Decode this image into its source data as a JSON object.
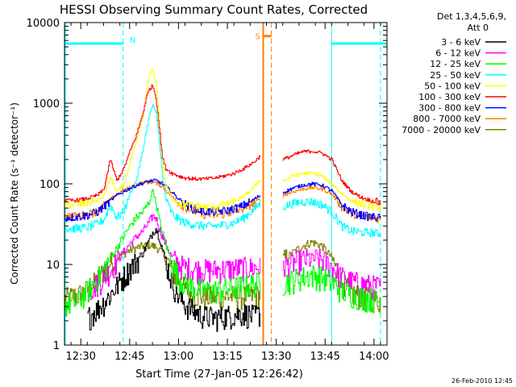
{
  "chart_data": {
    "type": "line",
    "title": "HESSI Observing Summary Count Rates, Corrected",
    "xlabel": "Start Time (27-Jan-05 12:26:42)",
    "ylabel": "Corrected Count Rate (s⁻¹ detector⁻¹)",
    "yscale": "log",
    "ylim": [
      1,
      10000
    ],
    "xlim_minutes": [
      -2,
      97
    ],
    "x_ticks": [
      {
        "label": "12:30",
        "minutes": 3
      },
      {
        "label": "12:45",
        "minutes": 18
      },
      {
        "label": "13:00",
        "minutes": 33
      },
      {
        "label": "13:15",
        "minutes": 48
      },
      {
        "label": "13:30",
        "minutes": 63
      },
      {
        "label": "13:45",
        "minutes": 78
      },
      {
        "label": "14:00",
        "minutes": 93
      }
    ],
    "y_ticks": [
      {
        "label": "1",
        "value": 1
      },
      {
        "label": "10",
        "value": 10
      },
      {
        "label": "100",
        "value": 100
      },
      {
        "label": "1000",
        "value": 1000
      },
      {
        "label": "10000",
        "value": 10000
      }
    ],
    "legend_title": [
      "Det 1,3,4,5,6,9,",
      "Att 0"
    ],
    "legend_position": "right",
    "timestamp": "26-Feb-2010 12:45",
    "annotations": {
      "night_label": "N",
      "saa_label": "S"
    },
    "markers": {
      "night_intervals": [
        [
          -2,
          16
        ],
        [
          80,
          97
        ]
      ],
      "night_level": 5500,
      "night_dashed_lines": [
        16,
        95
      ],
      "night_solid_lines": [
        80
      ],
      "saa_start": 59,
      "saa_end": 61.5,
      "saa_level": 6800
    },
    "gap": [
      58,
      65
    ],
    "series": [
      {
        "name": "3 - 6 keV",
        "color": "#000000",
        "x": [
          5,
          8,
          10,
          12,
          14,
          16,
          18,
          20,
          22,
          24,
          25,
          26,
          27,
          29,
          31,
          33,
          35,
          38,
          41,
          44,
          47,
          50,
          53,
          56,
          58
        ],
        "y": [
          2.2,
          2.8,
          3.4,
          4.2,
          5.5,
          7,
          9,
          11,
          14,
          20,
          25,
          28,
          22,
          11,
          6,
          4,
          3.2,
          2.6,
          2.3,
          2.2,
          2.3,
          2.4,
          2.5,
          2.3,
          2.5
        ]
      },
      {
        "name": "6 - 12 keV",
        "color": "#ff00ff",
        "x": [
          5,
          8,
          10,
          12,
          14,
          16,
          18,
          20,
          22,
          24,
          25,
          26,
          27,
          29,
          31,
          33,
          35,
          38,
          41,
          44,
          47,
          50,
          53,
          56,
          58,
          65,
          68,
          71,
          74,
          77,
          80,
          83,
          86,
          89,
          92,
          95
        ],
        "y": [
          4.8,
          5.8,
          7,
          8.5,
          11,
          14,
          18,
          22,
          26,
          34,
          40,
          38,
          28,
          18,
          12,
          10,
          9.2,
          8.8,
          8.6,
          8.6,
          8.8,
          9,
          9.1,
          9.1,
          9.2,
          9.5,
          10.5,
          11.5,
          12,
          11.5,
          9.5,
          7,
          6.2,
          5.8,
          5.5,
          5.3
        ]
      },
      {
        "name": "12 - 25 keV",
        "color": "#00ff00",
        "x": [
          -2,
          2,
          5,
          8,
          10,
          12,
          14,
          16,
          18,
          20,
          22,
          24,
          25,
          26,
          27,
          29,
          31,
          33,
          35,
          38,
          41,
          44,
          47,
          50,
          53,
          56,
          58,
          65,
          68,
          71,
          74,
          77,
          80,
          83,
          86,
          89,
          92,
          95
        ],
        "y": [
          3.2,
          3.5,
          4.8,
          6.5,
          9,
          12,
          16,
          22,
          30,
          38,
          45,
          60,
          85,
          60,
          35,
          18,
          10,
          7,
          5.8,
          5.2,
          4.8,
          4.8,
          5,
          5.2,
          5.5,
          5.8,
          6,
          6,
          6.5,
          7,
          7.5,
          7,
          6,
          4.8,
          4.3,
          4,
          3.8,
          3.6
        ]
      },
      {
        "name": "25 - 50 keV",
        "color": "#00ffff",
        "x": [
          -2,
          2,
          5,
          8,
          10,
          12,
          14,
          16,
          18,
          20,
          22,
          23,
          24,
          25,
          26,
          27,
          28,
          29,
          31,
          33,
          35,
          38,
          41,
          44,
          47,
          50,
          53,
          56,
          58,
          65,
          68,
          71,
          74,
          77,
          80,
          83,
          86,
          89,
          92,
          95
        ],
        "y": [
          28,
          28,
          29,
          32,
          36,
          55,
          38,
          45,
          75,
          110,
          260,
          450,
          700,
          950,
          750,
          350,
          120,
          65,
          42,
          36,
          33,
          31,
          30,
          30,
          31,
          33,
          38,
          48,
          58,
          52,
          57,
          60,
          60,
          55,
          45,
          30,
          26,
          25,
          25,
          24
        ]
      },
      {
        "name": "50 - 100 keV",
        "color": "#ffff00",
        "x": [
          -2,
          2,
          5,
          8,
          10,
          12,
          14,
          16,
          18,
          20,
          22,
          23,
          24,
          25,
          26,
          27,
          28,
          29,
          31,
          33,
          35,
          38,
          41,
          44,
          47,
          50,
          53,
          56,
          58,
          65,
          68,
          71,
          74,
          77,
          80,
          83,
          86,
          89,
          92,
          95
        ],
        "y": [
          55,
          56,
          58,
          62,
          70,
          120,
          80,
          95,
          180,
          330,
          700,
          1300,
          2200,
          2700,
          1800,
          600,
          180,
          95,
          65,
          58,
          55,
          53,
          52,
          52,
          55,
          60,
          70,
          90,
          115,
          108,
          125,
          135,
          135,
          125,
          100,
          75,
          62,
          57,
          54,
          52
        ]
      },
      {
        "name": "100 - 300 keV",
        "color": "#ff0000",
        "x": [
          -2,
          2,
          5,
          8,
          10,
          12,
          14,
          16,
          18,
          20,
          22,
          23,
          24,
          25,
          26,
          27,
          28,
          29,
          31,
          33,
          35,
          38,
          41,
          44,
          47,
          50,
          53,
          56,
          58,
          65,
          68,
          71,
          74,
          77,
          80,
          83,
          86,
          89,
          92,
          95
        ],
        "y": [
          62,
          63,
          66,
          72,
          85,
          200,
          110,
          150,
          250,
          400,
          750,
          1150,
          1500,
          1650,
          1200,
          500,
          210,
          155,
          135,
          125,
          118,
          115,
          115,
          118,
          125,
          135,
          155,
          185,
          220,
          200,
          225,
          250,
          255,
          240,
          200,
          110,
          80,
          68,
          62,
          58
        ]
      },
      {
        "name": "300 - 800 keV",
        "color": "#0000ff",
        "x": [
          -2,
          2,
          5,
          8,
          10,
          12,
          14,
          16,
          18,
          20,
          22,
          24,
          26,
          28,
          30,
          33,
          36,
          40,
          44,
          48,
          52,
          55,
          58,
          65,
          68,
          71,
          74,
          77,
          80,
          83,
          86,
          89,
          92,
          95
        ],
        "y": [
          38,
          39,
          41,
          45,
          52,
          62,
          72,
          80,
          88,
          96,
          102,
          108,
          110,
          100,
          85,
          65,
          52,
          46,
          45,
          47,
          52,
          60,
          72,
          78,
          88,
          96,
          100,
          96,
          82,
          55,
          45,
          41,
          39,
          38
        ]
      },
      {
        "name": "800 - 7000 keV",
        "color": "#ff8000",
        "x": [
          -2,
          2,
          5,
          8,
          10,
          12,
          14,
          16,
          18,
          20,
          22,
          24,
          26,
          28,
          30,
          33,
          36,
          40,
          44,
          48,
          52,
          55,
          58,
          65,
          68,
          71,
          74,
          77,
          80,
          83,
          86,
          89,
          92,
          95
        ],
        "y": [
          40,
          40,
          42,
          46,
          54,
          64,
          74,
          83,
          90,
          98,
          103,
          105,
          103,
          92,
          75,
          58,
          48,
          42,
          41,
          43,
          48,
          55,
          65,
          72,
          80,
          86,
          90,
          86,
          75,
          52,
          43,
          40,
          38,
          37
        ]
      },
      {
        "name": "7000 - 20000 keV",
        "color": "#808000",
        "x": [
          -2,
          2,
          5,
          8,
          10,
          12,
          14,
          16,
          18,
          20,
          22,
          24,
          26,
          28,
          30,
          32,
          35,
          38,
          41,
          44,
          47,
          50,
          53,
          56,
          58,
          65,
          68,
          71,
          74,
          77,
          80,
          83,
          86,
          89,
          92,
          95
        ],
        "y": [
          3.8,
          4.2,
          4.8,
          6.5,
          8.5,
          10.5,
          12,
          13.5,
          15,
          16,
          17,
          17.5,
          16.5,
          14,
          10,
          6.8,
          5,
          4.3,
          4,
          4,
          4,
          4.1,
          4.1,
          4.1,
          4.2,
          11,
          14,
          17,
          19,
          17,
          12,
          6,
          4.5,
          4,
          3.8,
          3.6
        ]
      }
    ]
  }
}
